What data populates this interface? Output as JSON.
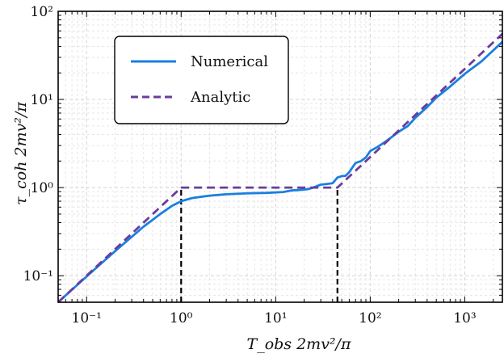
{
  "chart_data": {
    "type": "line",
    "xlabel": "T_obs 2mv²/π",
    "ylabel": "τ_coh 2mv²/π",
    "xscale": "log",
    "yscale": "log",
    "xlim": [
      0.05,
      2500
    ],
    "ylim": [
      0.05,
      100
    ],
    "grid": true,
    "legend_position": "top-left",
    "x_tick_labels": [
      "10⁻¹",
      "10⁰",
      "10¹",
      "10²",
      "10³"
    ],
    "y_tick_labels": [
      "10⁻¹",
      "10⁰",
      "10¹",
      "10²"
    ],
    "series": [
      {
        "name": "Numerical",
        "color": "#1a7fe0",
        "style": "solid",
        "x": [
          0.05,
          0.1,
          0.2,
          0.4,
          0.6,
          0.8,
          1.0,
          1.3,
          2,
          3,
          5,
          8,
          12,
          15,
          18,
          22,
          25,
          30,
          35,
          40,
          45,
          50,
          55,
          60,
          65,
          70,
          80,
          90,
          100,
          120,
          150,
          200,
          250,
          300,
          400,
          500,
          700,
          1000,
          1500,
          2000,
          2500
        ],
        "y": [
          0.05,
          0.098,
          0.19,
          0.36,
          0.5,
          0.62,
          0.7,
          0.76,
          0.81,
          0.84,
          0.86,
          0.87,
          0.89,
          0.93,
          0.94,
          0.96,
          1.0,
          1.08,
          1.1,
          1.12,
          1.3,
          1.35,
          1.36,
          1.5,
          1.7,
          1.9,
          2.0,
          2.2,
          2.6,
          2.9,
          3.4,
          4.3,
          5.0,
          6.2,
          8.2,
          10.5,
          14.0,
          19.5,
          27.0,
          36.0,
          45.0
        ]
      },
      {
        "name": "Analytic",
        "color": "#6a3d9a",
        "style": "dashed",
        "x": [
          0.05,
          1.0,
          45,
          2500
        ],
        "y": [
          0.05,
          1.0,
          1.0,
          55.5
        ]
      }
    ],
    "annotations": [
      {
        "type": "vertical-dashed-line",
        "color": "#000000",
        "x": 1.0,
        "y_from": 0.05,
        "y_to": 1.0
      },
      {
        "type": "vertical-dashed-line",
        "color": "#000000",
        "x": 45,
        "y_from": 0.05,
        "y_to": 1.0
      }
    ]
  }
}
